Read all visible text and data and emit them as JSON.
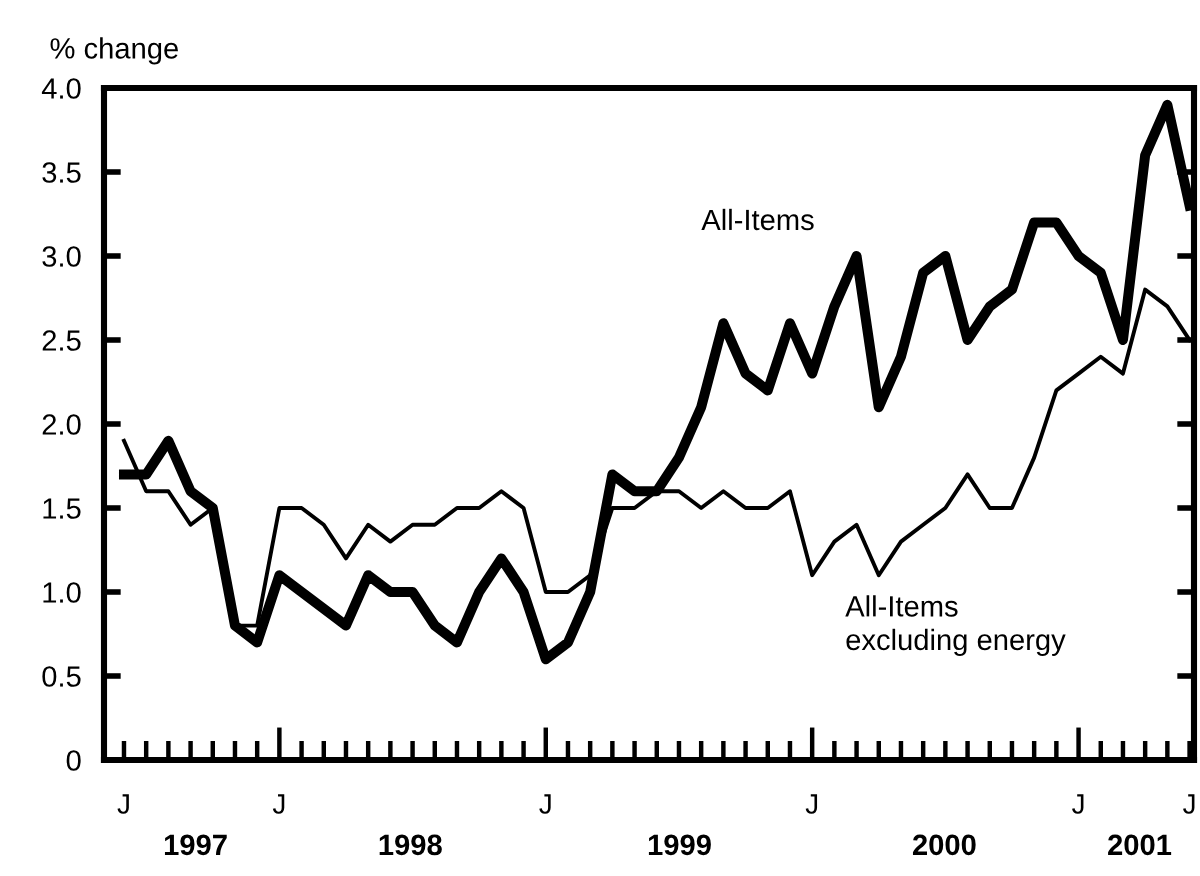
{
  "chart_data": {
    "type": "line",
    "ylabel": "% change",
    "categories": [
      "J",
      null,
      null,
      null,
      null,
      null,
      null,
      "J",
      null,
      null,
      null,
      null,
      null,
      null,
      null,
      null,
      null,
      null,
      null,
      "J",
      null,
      null,
      null,
      null,
      null,
      null,
      null,
      null,
      null,
      null,
      null,
      "J",
      null,
      null,
      null,
      null,
      null,
      null,
      null,
      null,
      null,
      null,
      null,
      "J",
      null,
      null,
      null,
      null,
      "J"
    ],
    "series": [
      {
        "name": "All-Items",
        "color": "#000000",
        "values": [
          1.7,
          1.7,
          1.9,
          1.6,
          1.5,
          0.8,
          0.7,
          1.1,
          1.0,
          0.9,
          0.8,
          1.1,
          1.0,
          1.0,
          0.8,
          0.7,
          1.0,
          1.2,
          1.0,
          0.6,
          0.7,
          1.0,
          1.7,
          1.6,
          1.6,
          1.8,
          2.1,
          2.6,
          2.3,
          2.2,
          2.6,
          2.3,
          2.7,
          3.0,
          2.1,
          2.4,
          2.9,
          3.0,
          2.5,
          2.7,
          2.8,
          3.2,
          3.2,
          3.0,
          2.9,
          2.5,
          3.6,
          3.9,
          3.3
        ]
      },
      {
        "name": "All-Items\nexcluding energy",
        "color": "#000000",
        "values": [
          1.9,
          1.6,
          1.6,
          1.4,
          1.5,
          0.8,
          0.8,
          1.5,
          1.5,
          1.4,
          1.2,
          1.4,
          1.3,
          1.4,
          1.4,
          1.5,
          1.5,
          1.6,
          1.5,
          1.0,
          1.0,
          1.1,
          1.5,
          1.5,
          1.6,
          1.6,
          1.5,
          1.6,
          1.5,
          1.5,
          1.6,
          1.1,
          1.3,
          1.4,
          1.1,
          1.3,
          1.4,
          1.5,
          1.7,
          1.5,
          1.5,
          1.8,
          2.2,
          2.3,
          2.4,
          2.3,
          2.8,
          2.7,
          2.5
        ]
      }
    ],
    "ylim": [
      0,
      4.0
    ],
    "yticks": [
      0,
      {
        "value": 0.5,
        "label": "0.5"
      },
      {
        "value": 1.0,
        "label": "1.0"
      },
      {
        "value": 1.5,
        "label": "1.5"
      },
      {
        "value": 2.0,
        "label": "2.0"
      },
      {
        "value": 2.5,
        "label": "2.5"
      },
      {
        "value": 3.0,
        "label": "3.0"
      },
      {
        "value": 3.5,
        "label": "3.5"
      },
      {
        "value": 4.0,
        "label": "4.0"
      }
    ],
    "annotations": [
      "1997",
      "1998",
      "1999",
      "2000",
      "2001"
    ],
    "grid": false,
    "legend": false,
    "marker": "none",
    "line_style": "solid"
  }
}
